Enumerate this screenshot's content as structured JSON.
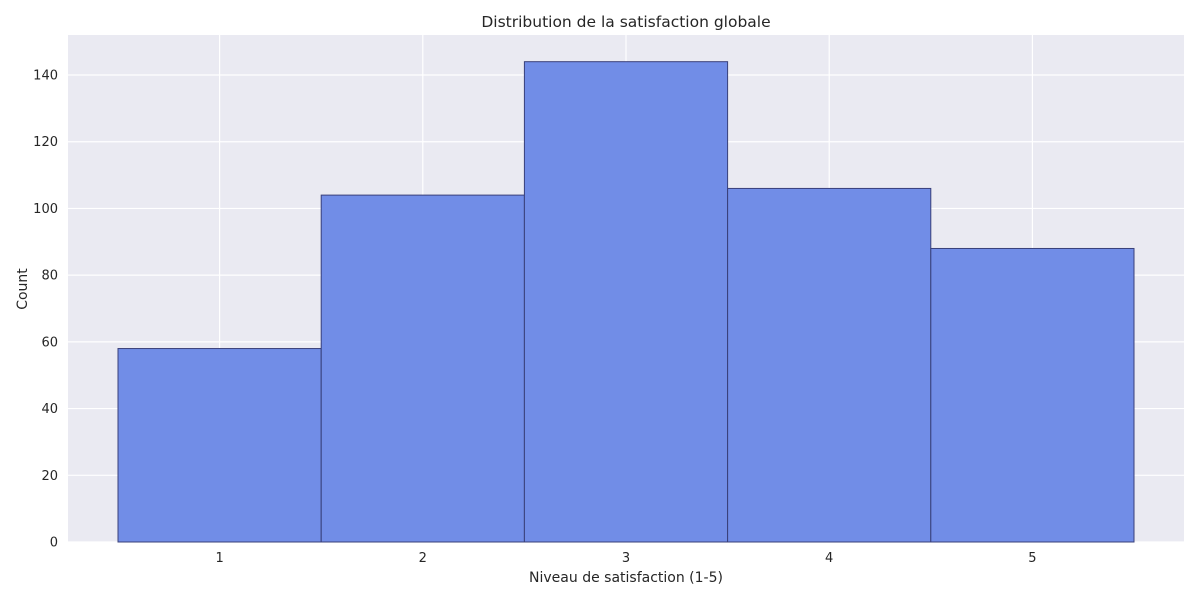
{
  "chart_data": {
    "type": "bar",
    "title": "Distribution de la satisfaction globale",
    "xlabel": "Niveau de satisfaction (1-5)",
    "ylabel": "Count",
    "categories": [
      "1",
      "2",
      "3",
      "4",
      "5"
    ],
    "values": [
      58,
      104,
      144,
      106,
      88
    ],
    "ylim": [
      0,
      152
    ],
    "yticks": [
      0,
      20,
      40,
      60,
      80,
      100,
      120,
      140
    ],
    "grid": true,
    "legend": "none",
    "colors": {
      "bar_fill": "#6b88e6",
      "bar_edge": "#39407a",
      "plot_background": "#eaeaf2",
      "grid": "#ffffff"
    }
  }
}
